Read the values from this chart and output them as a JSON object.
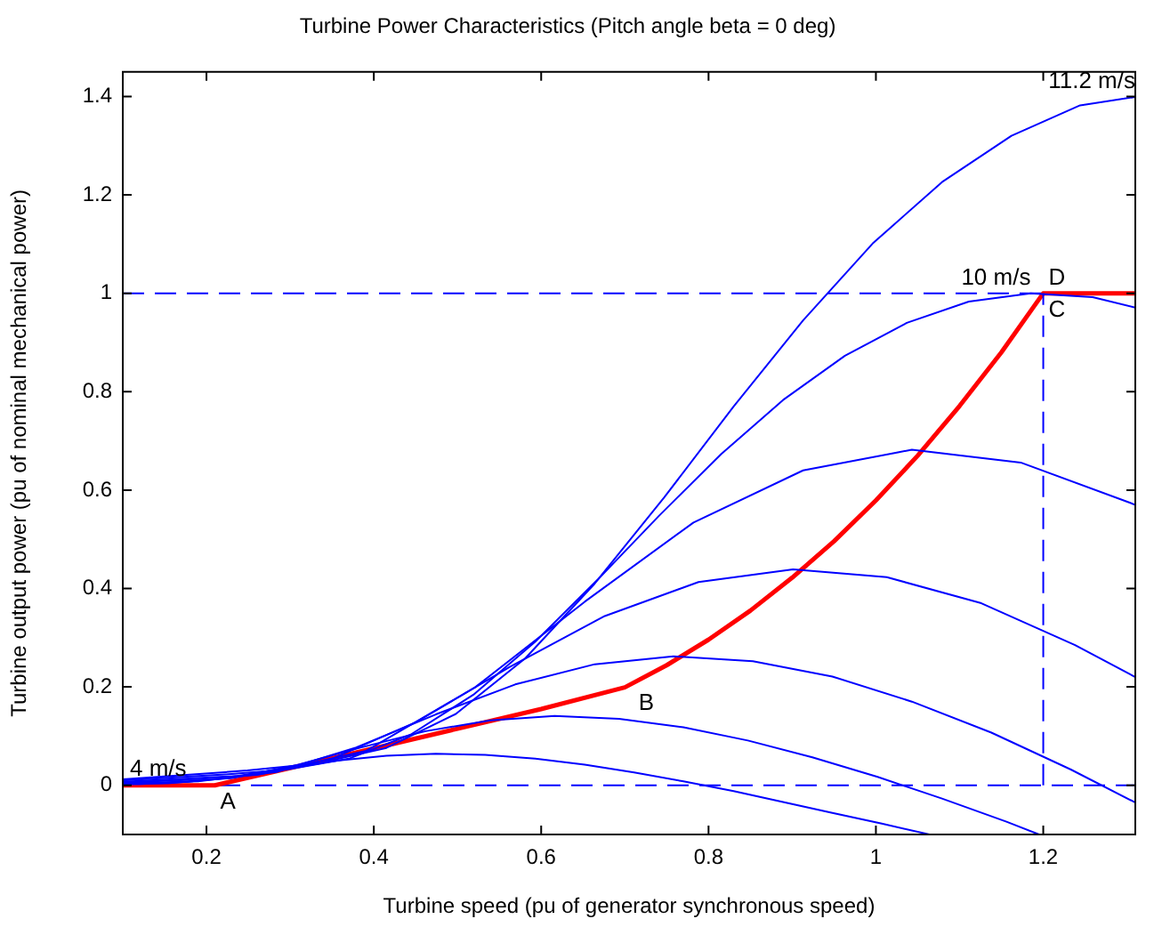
{
  "chart_data": {
    "type": "line",
    "title": "Turbine Power Characteristics (Pitch angle beta = 0 deg)",
    "xlabel": "Turbine speed (pu of generator synchronous speed)",
    "ylabel": "Turbine output power (pu of nominal mechanical power)",
    "xlim": [
      0.1,
      1.31
    ],
    "xticks": [
      0.2,
      0.4,
      0.6,
      0.8,
      1,
      1.2
    ],
    "ylim": [
      -0.1,
      1.45
    ],
    "yticks": [
      0,
      0.2,
      0.4,
      0.6,
      0.8,
      1,
      1.2,
      1.4
    ],
    "grid": false,
    "legend": false,
    "marker": "none",
    "series": [
      {
        "name": "4 m/s",
        "color": "#0000ff",
        "x": [
          0.1,
          0.119,
          0.178,
          0.237,
          0.296,
          0.356,
          0.415,
          0.474,
          0.533,
          0.593,
          0.652,
          0.711,
          0.77,
          0.83,
          0.889,
          0.948,
          1.007,
          1.064
        ],
        "values": [
          0.002,
          0.002,
          0.007,
          0.019,
          0.035,
          0.05,
          0.06,
          0.064,
          0.062,
          0.054,
          0.042,
          0.026,
          0.008,
          -0.012,
          -0.034,
          -0.056,
          -0.078,
          -0.1
        ]
      },
      {
        "color": "#0000ff",
        "x": [
          0.1,
          0.154,
          0.231,
          0.308,
          0.385,
          0.462,
          0.539,
          0.616,
          0.693,
          0.77,
          0.847,
          0.924,
          1.002,
          1.079,
          1.156,
          1.195
        ],
        "values": [
          0.003,
          0.004,
          0.015,
          0.041,
          0.077,
          0.11,
          0.132,
          0.141,
          0.135,
          0.118,
          0.091,
          0.057,
          0.017,
          -0.027,
          -0.074,
          -0.1
        ]
      },
      {
        "color": "#0000ff",
        "x": [
          0.1,
          0.19,
          0.284,
          0.379,
          0.474,
          0.569,
          0.664,
          0.758,
          0.853,
          0.948,
          1.043,
          1.138,
          1.233,
          1.31
        ],
        "values": [
          0.004,
          0.008,
          0.027,
          0.077,
          0.144,
          0.205,
          0.246,
          0.262,
          0.252,
          0.221,
          0.17,
          0.107,
          0.032,
          -0.035
        ]
      },
      {
        "color": "#0000ff",
        "x": [
          0.1,
          0.225,
          0.338,
          0.45,
          0.563,
          0.676,
          0.788,
          0.901,
          1.013,
          1.126,
          1.238,
          1.31
        ],
        "values": [
          0.006,
          0.014,
          0.045,
          0.128,
          0.241,
          0.344,
          0.413,
          0.439,
          0.423,
          0.37,
          0.285,
          0.22
        ]
      },
      {
        "color": "#0000ff",
        "x": [
          0.1,
          0.261,
          0.391,
          0.521,
          0.652,
          0.782,
          0.913,
          1.043,
          1.173,
          1.304,
          1.31
        ],
        "values": [
          0.007,
          0.021,
          0.07,
          0.199,
          0.373,
          0.534,
          0.64,
          0.682,
          0.656,
          0.574,
          0.57
        ]
      },
      {
        "name": "10 m/s",
        "color": "#0000ff",
        "x": [
          0.1,
          0.222,
          0.296,
          0.37,
          0.444,
          0.519,
          0.593,
          0.667,
          0.741,
          0.815,
          0.889,
          0.963,
          1.037,
          1.111,
          1.185,
          1.259,
          1.31
        ],
        "values": [
          0.01,
          0.022,
          0.032,
          0.054,
          0.103,
          0.184,
          0.292,
          0.417,
          0.548,
          0.673,
          0.783,
          0.873,
          0.94,
          0.983,
          1.0,
          0.992,
          0.971
        ]
      },
      {
        "name": "11.2 m/s",
        "color": "#0000ff",
        "x": [
          0.1,
          0.249,
          0.332,
          0.415,
          0.498,
          0.581,
          0.664,
          0.747,
          0.83,
          0.913,
          0.996,
          1.079,
          1.162,
          1.244,
          1.31
        ],
        "values": [
          0.012,
          0.03,
          0.044,
          0.076,
          0.145,
          0.258,
          0.41,
          0.585,
          0.77,
          0.945,
          1.101,
          1.226,
          1.32,
          1.382,
          1.399
        ]
      },
      {
        "color": "#0000ff",
        "x": [
          1.2,
          1.2
        ],
        "values": [
          0,
          1
        ],
        "line_style": "dashed"
      },
      {
        "color": "#ff0000",
        "x": [
          0.1,
          0.21,
          0.3,
          0.4,
          0.5,
          0.6,
          0.7,
          0.75,
          0.8,
          0.85,
          0.9,
          0.95,
          1.0,
          1.05,
          1.1,
          1.15,
          1.2,
          1.31
        ],
        "values": [
          0,
          0,
          0.035,
          0.075,
          0.115,
          0.155,
          0.199,
          0.244,
          0.296,
          0.355,
          0.422,
          0.496,
          0.579,
          0.67,
          0.771,
          0.88,
          1.0,
          1.0
        ]
      }
    ],
    "ref_lines": [
      {
        "axis": "y",
        "value": 1,
        "color": "#0000ff",
        "line_style": "dashed"
      },
      {
        "axis": "y",
        "value": 0,
        "color": "#0000ff",
        "line_style": "dashed"
      }
    ],
    "annotations": [
      {
        "text": "A",
        "x": 0.21,
        "y": 0
      },
      {
        "text": "B",
        "x": 0.71,
        "y": 0.2
      },
      {
        "text": "D",
        "x": 1.2,
        "y": 1
      },
      {
        "text": "C",
        "x": 1.2,
        "y": 1
      }
    ]
  }
}
